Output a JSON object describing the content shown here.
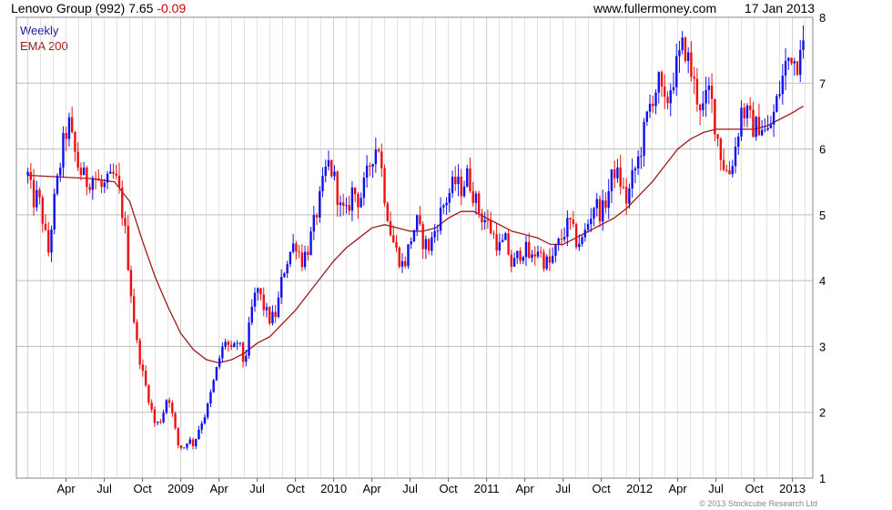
{
  "header": {
    "title": "Lenovo Group (992) 7.65",
    "change": "-0.09",
    "site": "www.fullermoney.com",
    "date": "17 Jan 2013"
  },
  "legend": {
    "weekly": "Weekly",
    "ema": "EMA 200"
  },
  "copyright": "© 2013 Stockcube Research Ltd",
  "colors": {
    "up": "#1010ee",
    "down": "#ee1010",
    "ema": "#a01818",
    "grid": "#d0d0d0",
    "accent_change": "#cc0000",
    "legend_weekly": "#1a1a9a"
  },
  "chart_data": {
    "type": "candlestick",
    "ylim": [
      1,
      8
    ],
    "y_ticks": [
      "1",
      "2",
      "3",
      "4",
      "5",
      "6",
      "7",
      "8"
    ],
    "x_ticks": [
      "Apr",
      "Jul",
      "Oct",
      "2009",
      "Apr",
      "Jul",
      "Oct",
      "2010",
      "Apr",
      "Jul",
      "Oct",
      "2011",
      "Apr",
      "Jul",
      "Oct",
      "2012",
      "Apr",
      "Jul",
      "Oct",
      "2013"
    ],
    "x_range": [
      "2008-01",
      "2013-01"
    ],
    "grid": true,
    "legend_position": "top-left",
    "weekly_close_path": [
      {
        "m": 0.0,
        "c": 5.6
      },
      {
        "m": 0.4,
        "c": 5.2
      },
      {
        "m": 0.8,
        "c": 5.3
      },
      {
        "m": 1.2,
        "c": 4.9
      },
      {
        "m": 1.6,
        "c": 4.4
      },
      {
        "m": 2.0,
        "c": 5.1
      },
      {
        "m": 2.4,
        "c": 5.6
      },
      {
        "m": 2.8,
        "c": 6.1
      },
      {
        "m": 3.2,
        "c": 6.4
      },
      {
        "m": 3.6,
        "c": 6.0
      },
      {
        "m": 4.0,
        "c": 5.7
      },
      {
        "m": 4.6,
        "c": 5.5
      },
      {
        "m": 5.2,
        "c": 5.6
      },
      {
        "m": 5.8,
        "c": 5.4
      },
      {
        "m": 6.4,
        "c": 5.5
      },
      {
        "m": 6.8,
        "c": 5.6
      },
      {
        "m": 7.2,
        "c": 5.3
      },
      {
        "m": 7.6,
        "c": 4.8
      },
      {
        "m": 8.0,
        "c": 4.0
      },
      {
        "m": 8.5,
        "c": 3.1
      },
      {
        "m": 9.0,
        "c": 2.6
      },
      {
        "m": 9.5,
        "c": 2.2
      },
      {
        "m": 10.0,
        "c": 1.8
      },
      {
        "m": 10.5,
        "c": 1.9
      },
      {
        "m": 11.0,
        "c": 2.3
      },
      {
        "m": 11.4,
        "c": 1.9
      },
      {
        "m": 11.8,
        "c": 1.5
      },
      {
        "m": 12.2,
        "c": 1.45
      },
      {
        "m": 12.6,
        "c": 1.6
      },
      {
        "m": 13.0,
        "c": 1.5
      },
      {
        "m": 13.5,
        "c": 1.8
      },
      {
        "m": 14.0,
        "c": 2.0
      },
      {
        "m": 14.5,
        "c": 2.4
      },
      {
        "m": 15.0,
        "c": 2.8
      },
      {
        "m": 15.5,
        "c": 3.1
      },
      {
        "m": 16.0,
        "c": 2.9
      },
      {
        "m": 16.5,
        "c": 3.1
      },
      {
        "m": 17.0,
        "c": 2.7
      },
      {
        "m": 17.5,
        "c": 3.5
      },
      {
        "m": 18.0,
        "c": 3.9
      },
      {
        "m": 18.5,
        "c": 3.6
      },
      {
        "m": 19.0,
        "c": 3.4
      },
      {
        "m": 19.5,
        "c": 3.5
      },
      {
        "m": 20.0,
        "c": 4.1
      },
      {
        "m": 20.5,
        "c": 4.4
      },
      {
        "m": 21.0,
        "c": 4.6
      },
      {
        "m": 21.5,
        "c": 4.3
      },
      {
        "m": 22.0,
        "c": 4.5
      },
      {
        "m": 22.5,
        "c": 4.9
      },
      {
        "m": 23.0,
        "c": 5.3
      },
      {
        "m": 23.5,
        "c": 5.8
      },
      {
        "m": 24.0,
        "c": 5.6
      },
      {
        "m": 24.5,
        "c": 5.1
      },
      {
        "m": 25.0,
        "c": 5.0
      },
      {
        "m": 25.5,
        "c": 5.4
      },
      {
        "m": 26.0,
        "c": 5.2
      },
      {
        "m": 26.5,
        "c": 5.5
      },
      {
        "m": 27.0,
        "c": 5.9
      },
      {
        "m": 27.5,
        "c": 6.1
      },
      {
        "m": 28.0,
        "c": 5.3
      },
      {
        "m": 28.5,
        "c": 4.7
      },
      {
        "m": 29.0,
        "c": 4.4
      },
      {
        "m": 29.5,
        "c": 4.2
      },
      {
        "m": 30.0,
        "c": 4.6
      },
      {
        "m": 30.5,
        "c": 4.9
      },
      {
        "m": 31.0,
        "c": 4.6
      },
      {
        "m": 31.5,
        "c": 4.5
      },
      {
        "m": 32.0,
        "c": 4.8
      },
      {
        "m": 32.5,
        "c": 5.1
      },
      {
        "m": 33.0,
        "c": 5.3
      },
      {
        "m": 33.5,
        "c": 5.5
      },
      {
        "m": 34.0,
        "c": 5.4
      },
      {
        "m": 34.5,
        "c": 5.6
      },
      {
        "m": 35.0,
        "c": 5.3
      },
      {
        "m": 35.5,
        "c": 5.0
      },
      {
        "m": 36.0,
        "c": 4.9
      },
      {
        "m": 36.5,
        "c": 4.7
      },
      {
        "m": 37.0,
        "c": 4.5
      },
      {
        "m": 37.5,
        "c": 4.6
      },
      {
        "m": 38.0,
        "c": 4.2
      },
      {
        "m": 38.5,
        "c": 4.4
      },
      {
        "m": 39.0,
        "c": 4.5
      },
      {
        "m": 39.5,
        "c": 4.3
      },
      {
        "m": 40.0,
        "c": 4.5
      },
      {
        "m": 40.5,
        "c": 4.3
      },
      {
        "m": 41.0,
        "c": 4.25
      },
      {
        "m": 41.5,
        "c": 4.5
      },
      {
        "m": 42.0,
        "c": 4.7
      },
      {
        "m": 42.5,
        "c": 4.9
      },
      {
        "m": 43.0,
        "c": 4.6
      },
      {
        "m": 43.5,
        "c": 4.6
      },
      {
        "m": 44.0,
        "c": 4.9
      },
      {
        "m": 44.5,
        "c": 5.2
      },
      {
        "m": 45.0,
        "c": 5.0
      },
      {
        "m": 45.5,
        "c": 5.3
      },
      {
        "m": 46.0,
        "c": 5.7
      },
      {
        "m": 46.5,
        "c": 5.5
      },
      {
        "m": 47.0,
        "c": 5.2
      },
      {
        "m": 47.5,
        "c": 5.6
      },
      {
        "m": 48.0,
        "c": 5.9
      },
      {
        "m": 48.5,
        "c": 6.4
      },
      {
        "m": 49.0,
        "c": 6.8
      },
      {
        "m": 49.5,
        "c": 7.0
      },
      {
        "m": 50.0,
        "c": 6.6
      },
      {
        "m": 50.5,
        "c": 7.0
      },
      {
        "m": 51.0,
        "c": 7.3
      },
      {
        "m": 51.5,
        "c": 7.6
      },
      {
        "m": 52.0,
        "c": 7.2
      },
      {
        "m": 52.5,
        "c": 6.8
      },
      {
        "m": 53.0,
        "c": 6.6
      },
      {
        "m": 53.5,
        "c": 6.9
      },
      {
        "m": 54.0,
        "c": 6.3
      },
      {
        "m": 54.5,
        "c": 5.8
      },
      {
        "m": 55.0,
        "c": 5.6
      },
      {
        "m": 55.5,
        "c": 6.0
      },
      {
        "m": 56.0,
        "c": 6.6
      },
      {
        "m": 56.5,
        "c": 6.5
      },
      {
        "m": 57.0,
        "c": 6.3
      },
      {
        "m": 57.5,
        "c": 6.4
      },
      {
        "m": 58.0,
        "c": 6.2
      },
      {
        "m": 58.5,
        "c": 6.5
      },
      {
        "m": 59.0,
        "c": 6.9
      },
      {
        "m": 59.5,
        "c": 7.3
      },
      {
        "m": 60.0,
        "c": 7.5
      },
      {
        "m": 60.3,
        "c": 7.2
      },
      {
        "m": 60.6,
        "c": 7.7
      },
      {
        "m": 60.85,
        "c": 7.65
      }
    ],
    "ema_200_path": [
      {
        "m": 0.0,
        "c": 5.6
      },
      {
        "m": 5.0,
        "c": 5.55
      },
      {
        "m": 6.8,
        "c": 5.5
      },
      {
        "m": 8.0,
        "c": 5.2
      },
      {
        "m": 9.0,
        "c": 4.6
      },
      {
        "m": 10.0,
        "c": 4.05
      },
      {
        "m": 11.0,
        "c": 3.6
      },
      {
        "m": 12.0,
        "c": 3.2
      },
      {
        "m": 13.0,
        "c": 2.95
      },
      {
        "m": 14.0,
        "c": 2.8
      },
      {
        "m": 15.0,
        "c": 2.75
      },
      {
        "m": 16.0,
        "c": 2.8
      },
      {
        "m": 17.0,
        "c": 2.9
      },
      {
        "m": 18.0,
        "c": 3.05
      },
      {
        "m": 19.0,
        "c": 3.15
      },
      {
        "m": 20.0,
        "c": 3.35
      },
      {
        "m": 21.0,
        "c": 3.55
      },
      {
        "m": 22.0,
        "c": 3.8
      },
      {
        "m": 23.0,
        "c": 4.05
      },
      {
        "m": 24.0,
        "c": 4.3
      },
      {
        "m": 25.0,
        "c": 4.5
      },
      {
        "m": 26.0,
        "c": 4.65
      },
      {
        "m": 27.0,
        "c": 4.8
      },
      {
        "m": 28.0,
        "c": 4.85
      },
      {
        "m": 29.0,
        "c": 4.8
      },
      {
        "m": 30.0,
        "c": 4.75
      },
      {
        "m": 31.0,
        "c": 4.75
      },
      {
        "m": 32.0,
        "c": 4.8
      },
      {
        "m": 33.0,
        "c": 4.95
      },
      {
        "m": 34.0,
        "c": 5.05
      },
      {
        "m": 35.0,
        "c": 5.05
      },
      {
        "m": 36.0,
        "c": 4.95
      },
      {
        "m": 37.0,
        "c": 4.85
      },
      {
        "m": 38.0,
        "c": 4.75
      },
      {
        "m": 39.0,
        "c": 4.7
      },
      {
        "m": 40.0,
        "c": 4.65
      },
      {
        "m": 41.0,
        "c": 4.55
      },
      {
        "m": 42.0,
        "c": 4.55
      },
      {
        "m": 43.0,
        "c": 4.65
      },
      {
        "m": 44.0,
        "c": 4.75
      },
      {
        "m": 45.0,
        "c": 4.85
      },
      {
        "m": 46.0,
        "c": 4.95
      },
      {
        "m": 47.0,
        "c": 5.1
      },
      {
        "m": 48.0,
        "c": 5.3
      },
      {
        "m": 49.0,
        "c": 5.5
      },
      {
        "m": 50.0,
        "c": 5.75
      },
      {
        "m": 51.0,
        "c": 6.0
      },
      {
        "m": 52.0,
        "c": 6.15
      },
      {
        "m": 53.0,
        "c": 6.25
      },
      {
        "m": 54.0,
        "c": 6.3
      },
      {
        "m": 55.0,
        "c": 6.3
      },
      {
        "m": 56.0,
        "c": 6.3
      },
      {
        "m": 57.0,
        "c": 6.3
      },
      {
        "m": 58.0,
        "c": 6.35
      },
      {
        "m": 59.0,
        "c": 6.45
      },
      {
        "m": 60.0,
        "c": 6.55
      },
      {
        "m": 60.85,
        "c": 6.65
      }
    ]
  }
}
